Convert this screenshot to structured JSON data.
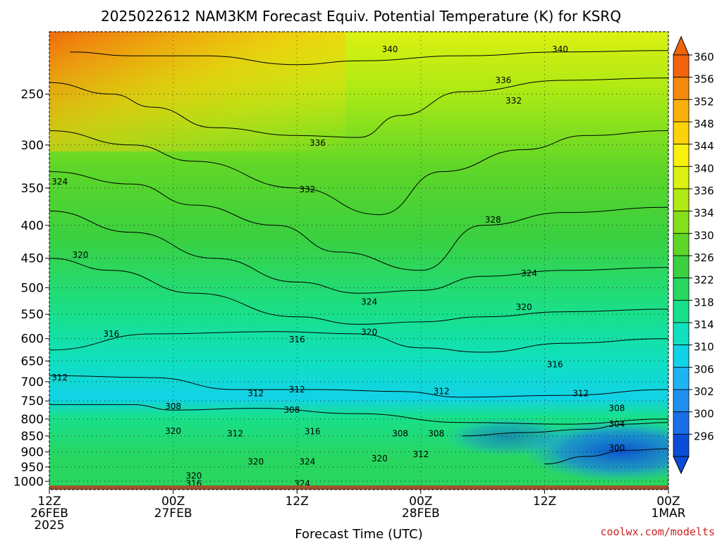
{
  "page": {
    "credit": "coolwx.com/modelts",
    "credit_color": "#cc2222"
  },
  "chart_data": {
    "type": "heatmap",
    "title": "2025022612 NAM3KM Forecast Equiv. Potential Temperature (K) for KSRQ",
    "xlabel": "Forecast Time (UTC)",
    "ylabel": "",
    "x_range_hours": [
      0,
      60
    ],
    "x_ticks": [
      {
        "hour": 0,
        "lines": [
          "12Z",
          "26FEB",
          "2025"
        ]
      },
      {
        "hour": 12,
        "lines": [
          "00Z",
          "27FEB"
        ]
      },
      {
        "hour": 24,
        "lines": [
          "12Z"
        ]
      },
      {
        "hour": 36,
        "lines": [
          "00Z",
          "28FEB"
        ]
      },
      {
        "hour": 48,
        "lines": [
          "12Z"
        ]
      },
      {
        "hour": 60,
        "lines": [
          "00Z",
          "1MAR"
        ]
      }
    ],
    "y_scale": "log-pressure",
    "y_range_hpa": [
      1030,
      200
    ],
    "y_ticks": [
      250,
      300,
      350,
      400,
      450,
      500,
      550,
      600,
      650,
      700,
      750,
      800,
      850,
      900,
      950,
      1000
    ],
    "grid": true,
    "colorbar": {
      "position": "right",
      "levels": [
        296,
        300,
        302,
        306,
        310,
        314,
        318,
        322,
        326,
        330,
        334,
        336,
        340,
        344,
        348,
        352,
        356,
        360
      ],
      "labels": [
        "296",
        "300",
        "302",
        "306",
        "310",
        "314",
        "318",
        "322",
        "326",
        "330",
        "334",
        "336",
        "340",
        "344",
        "348",
        "352",
        "356",
        "360"
      ],
      "colors": [
        "#0a4cd6",
        "#1a6fe8",
        "#1e90f0",
        "#1eb4f4",
        "#12d2e8",
        "#10e0c0",
        "#18e08c",
        "#28d660",
        "#3ad040",
        "#5ed628",
        "#84e01c",
        "#b0ea14",
        "#dcf012",
        "#f8f00e",
        "#fcd20a",
        "#fab00a",
        "#f68a0c",
        "#f0640e"
      ]
    },
    "ground_color": "#a0522d",
    "contour_lines": [
      {
        "level": 340,
        "points": [
          [
            2,
            215
          ],
          [
            8,
            218
          ],
          [
            15,
            218
          ],
          [
            24,
            225
          ],
          [
            30,
            222
          ],
          [
            40,
            218
          ],
          [
            50,
            215
          ],
          [
            60,
            214
          ]
        ]
      },
      {
        "level": 336,
        "points": [
          [
            0,
            240
          ],
          [
            6,
            250
          ],
          [
            10,
            262
          ],
          [
            16,
            282
          ],
          [
            24,
            290
          ],
          [
            30,
            292
          ],
          [
            34,
            270
          ],
          [
            40,
            248
          ],
          [
            50,
            238
          ],
          [
            60,
            236
          ]
        ]
      },
      {
        "level": 332,
        "points": [
          [
            0,
            285
          ],
          [
            8,
            300
          ],
          [
            14,
            318
          ],
          [
            24,
            350
          ],
          [
            32,
            385
          ],
          [
            38,
            330
          ],
          [
            46,
            305
          ],
          [
            52,
            290
          ],
          [
            60,
            285
          ]
        ]
      },
      {
        "level": 328,
        "points": [
          [
            0,
            330
          ],
          [
            8,
            345
          ],
          [
            14,
            372
          ],
          [
            22,
            400
          ],
          [
            28,
            440
          ],
          [
            36,
            470
          ],
          [
            42,
            400
          ],
          [
            50,
            382
          ],
          [
            60,
            375
          ]
        ]
      },
      {
        "level": 324,
        "points": [
          [
            0,
            380
          ],
          [
            8,
            410
          ],
          [
            16,
            450
          ],
          [
            24,
            490
          ],
          [
            30,
            510
          ],
          [
            36,
            505
          ],
          [
            42,
            480
          ],
          [
            50,
            470
          ],
          [
            60,
            465
          ]
        ]
      },
      {
        "level": 320,
        "points": [
          [
            0,
            450
          ],
          [
            6,
            470
          ],
          [
            14,
            510
          ],
          [
            24,
            555
          ],
          [
            30,
            570
          ],
          [
            36,
            565
          ],
          [
            42,
            555
          ],
          [
            50,
            545
          ],
          [
            60,
            540
          ]
        ]
      },
      {
        "level": 316,
        "points": [
          [
            0,
            625
          ],
          [
            10,
            590
          ],
          [
            22,
            585
          ],
          [
            30,
            590
          ],
          [
            36,
            620
          ],
          [
            42,
            630
          ],
          [
            50,
            610
          ],
          [
            60,
            600
          ]
        ]
      },
      {
        "level": 312,
        "points": [
          [
            0,
            685
          ],
          [
            10,
            690
          ],
          [
            18,
            720
          ],
          [
            26,
            720
          ],
          [
            34,
            725
          ],
          [
            40,
            740
          ],
          [
            50,
            735
          ],
          [
            60,
            720
          ]
        ]
      },
      {
        "level": 308,
        "points": [
          [
            0,
            760
          ],
          [
            8,
            760
          ],
          [
            12,
            775
          ],
          [
            20,
            770
          ],
          [
            30,
            785
          ],
          [
            40,
            810
          ],
          [
            50,
            815
          ],
          [
            60,
            800
          ]
        ]
      },
      {
        "level": 304,
        "points": [
          [
            40,
            850
          ],
          [
            46,
            840
          ],
          [
            52,
            830
          ],
          [
            56,
            815
          ],
          [
            60,
            810
          ]
        ]
      },
      {
        "level": 300,
        "points": [
          [
            48,
            940
          ],
          [
            52,
            915
          ],
          [
            56,
            895
          ],
          [
            60,
            890
          ]
        ]
      }
    ],
    "contour_labels": [
      {
        "text": "340",
        "hour": 33,
        "hpa": 213
      },
      {
        "text": "340",
        "hour": 49.5,
        "hpa": 213
      },
      {
        "text": "336",
        "hour": 44,
        "hpa": 238
      },
      {
        "text": "332",
        "hour": 45,
        "hpa": 256
      },
      {
        "text": "336",
        "hour": 26,
        "hpa": 298
      },
      {
        "text": "324",
        "hour": 1,
        "hpa": 342
      },
      {
        "text": "332",
        "hour": 25,
        "hpa": 352
      },
      {
        "text": "328",
        "hour": 43,
        "hpa": 392
      },
      {
        "text": "320",
        "hour": 3,
        "hpa": 445
      },
      {
        "text": "324",
        "hour": 46.5,
        "hpa": 475
      },
      {
        "text": "324",
        "hour": 31,
        "hpa": 526
      },
      {
        "text": "320",
        "hour": 46,
        "hpa": 536
      },
      {
        "text": "316",
        "hour": 6,
        "hpa": 590
      },
      {
        "text": "316",
        "hour": 24,
        "hpa": 602
      },
      {
        "text": "320",
        "hour": 31,
        "hpa": 586
      },
      {
        "text": "316",
        "hour": 49,
        "hpa": 658
      },
      {
        "text": "312",
        "hour": 1,
        "hpa": 690
      },
      {
        "text": "312",
        "hour": 20,
        "hpa": 730
      },
      {
        "text": "312",
        "hour": 24,
        "hpa": 720
      },
      {
        "text": "312",
        "hour": 38,
        "hpa": 725
      },
      {
        "text": "312",
        "hour": 51.5,
        "hpa": 730
      },
      {
        "text": "308",
        "hour": 12,
        "hpa": 765
      },
      {
        "text": "308",
        "hour": 23.5,
        "hpa": 775
      },
      {
        "text": "308",
        "hour": 55,
        "hpa": 770
      },
      {
        "text": "304",
        "hour": 55,
        "hpa": 815
      },
      {
        "text": "320",
        "hour": 12,
        "hpa": 835
      },
      {
        "text": "312",
        "hour": 18,
        "hpa": 843
      },
      {
        "text": "316",
        "hour": 25.5,
        "hpa": 837
      },
      {
        "text": "308",
        "hour": 34,
        "hpa": 843
      },
      {
        "text": "308",
        "hour": 37.5,
        "hpa": 843
      },
      {
        "text": "300",
        "hour": 55,
        "hpa": 888
      },
      {
        "text": "312",
        "hour": 36,
        "hpa": 908
      },
      {
        "text": "320",
        "hour": 32,
        "hpa": 922
      },
      {
        "text": "320",
        "hour": 20,
        "hpa": 932
      },
      {
        "text": "324",
        "hour": 25,
        "hpa": 932
      },
      {
        "text": "320",
        "hour": 14,
        "hpa": 980
      },
      {
        "text": "316",
        "hour": 14,
        "hpa": 1008
      },
      {
        "text": "324",
        "hour": 24.5,
        "hpa": 1008
      }
    ]
  }
}
